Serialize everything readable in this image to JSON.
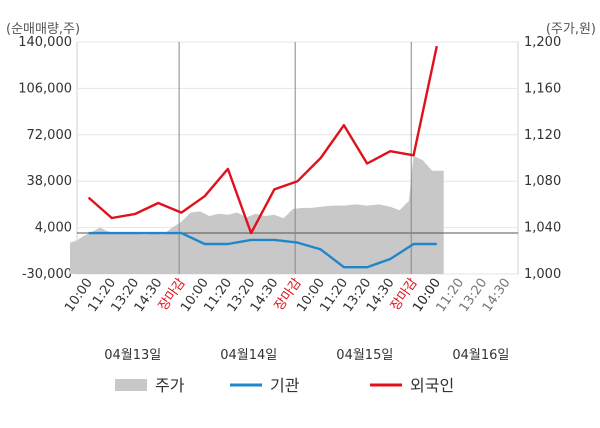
{
  "chart_data": {
    "type": "line",
    "left_axis": {
      "unit_label": "(순매매량,주)",
      "ylim": [
        -30000,
        140000
      ],
      "ticks": [
        "140,000",
        "106,000",
        "72,000",
        "38,000",
        "4,000",
        "-30,000"
      ],
      "tick_values": [
        140000,
        106000,
        72000,
        38000,
        4000,
        -30000
      ]
    },
    "right_axis": {
      "unit_label": "(주가,원)",
      "ylim": [
        1000,
        1200
      ],
      "ticks": [
        "1,200",
        "1,160",
        "1,120",
        "1,080",
        "1,040",
        "1,000"
      ],
      "tick_values": [
        1200,
        1160,
        1120,
        1080,
        1040,
        1000
      ]
    },
    "x_labels": [
      "10:00",
      "11:20",
      "13:20",
      "14:30",
      "장마감",
      "10:00",
      "11:20",
      "13:20",
      "14:30",
      "장마감",
      "10:00",
      "11:20",
      "13:20",
      "14:30",
      "장마감",
      "10:00",
      "11:20",
      "13:20",
      "14:30"
    ],
    "close_label": "장마감",
    "day_labels": [
      "04월13일",
      "04월14일",
      "04월15일",
      "04월16일"
    ],
    "legend": [
      {
        "name": "주가",
        "color": "#c8c8c8"
      },
      {
        "name": "기관",
        "color": "#1f86c9"
      },
      {
        "name": "외국인",
        "color": "#e0111c"
      }
    ],
    "series": [
      {
        "name": "외국인",
        "axis": "left",
        "values": [
          [
            0,
            26000
          ],
          [
            1,
            11000
          ],
          [
            2,
            14000
          ],
          [
            3,
            22000
          ],
          [
            4,
            15000
          ],
          [
            5,
            27000
          ],
          [
            6,
            47000
          ],
          [
            7,
            0
          ],
          [
            8,
            32000
          ],
          [
            9,
            38000
          ],
          [
            10,
            55000
          ],
          [
            11,
            79000
          ],
          [
            12,
            51000
          ],
          [
            13,
            60000
          ],
          [
            14,
            57000
          ],
          [
            15,
            137000
          ]
        ]
      },
      {
        "name": "기관",
        "axis": "left",
        "values": [
          [
            0,
            0
          ],
          [
            1,
            0
          ],
          [
            2,
            0
          ],
          [
            3,
            0
          ],
          [
            4,
            0
          ],
          [
            5,
            -8000
          ],
          [
            6,
            -8000
          ],
          [
            7,
            -5000
          ],
          [
            8,
            -5000
          ],
          [
            9,
            -7000
          ],
          [
            10,
            -12000
          ],
          [
            11,
            -25000
          ],
          [
            12,
            -25000
          ],
          [
            13,
            -19000
          ],
          [
            14,
            -8000
          ],
          [
            15,
            -8000
          ]
        ]
      },
      {
        "name": "주가",
        "axis": "right",
        "type": "area",
        "values": [
          [
            -0.8,
            1027
          ],
          [
            -0.5,
            1029
          ],
          [
            -0.2,
            1033
          ],
          [
            0.2,
            1037
          ],
          [
            0.5,
            1040
          ],
          [
            0.8,
            1037
          ],
          [
            1.2,
            1035
          ],
          [
            1.6,
            1036
          ],
          [
            2.0,
            1035
          ],
          [
            2.4,
            1034
          ],
          [
            2.8,
            1035
          ],
          [
            3.2,
            1034
          ],
          [
            3.6,
            1040
          ],
          [
            4.0,
            1045
          ],
          [
            4.4,
            1053
          ],
          [
            4.8,
            1054
          ],
          [
            5.2,
            1050
          ],
          [
            5.6,
            1052
          ],
          [
            6.0,
            1051
          ],
          [
            6.4,
            1053
          ],
          [
            6.8,
            1049
          ],
          [
            7.2,
            1052
          ],
          [
            7.6,
            1050
          ],
          [
            8.0,
            1051
          ],
          [
            8.4,
            1048
          ],
          [
            8.8,
            1056
          ],
          [
            9.2,
            1057
          ],
          [
            9.6,
            1057
          ],
          [
            10.0,
            1058
          ],
          [
            10.5,
            1059
          ],
          [
            11.0,
            1059
          ],
          [
            11.5,
            1060
          ],
          [
            12.0,
            1059
          ],
          [
            12.5,
            1060
          ],
          [
            13.0,
            1058
          ],
          [
            13.4,
            1055
          ],
          [
            13.8,
            1063
          ],
          [
            14.0,
            1102
          ],
          [
            14.4,
            1098
          ],
          [
            14.8,
            1089
          ],
          [
            15.3,
            1089
          ]
        ]
      }
    ],
    "day_dividers": [
      3.9,
      8.9,
      13.9
    ],
    "grid": true
  }
}
